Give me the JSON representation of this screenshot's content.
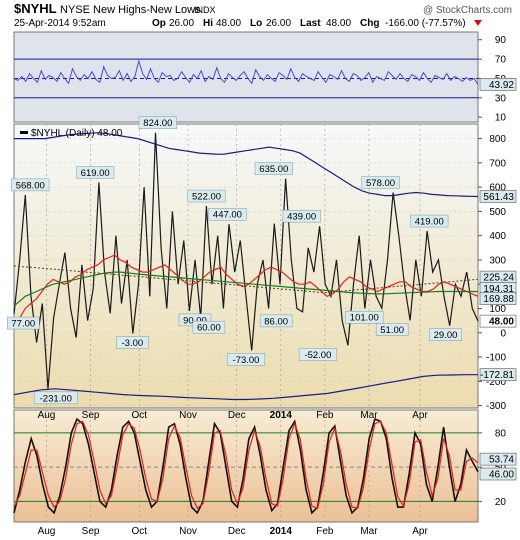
{
  "header": {
    "symbol": "$NYHL",
    "name": "NYSE New Highs-New Lows",
    "exchange": "INDX",
    "watermark": "@ StockCharts.com",
    "date": "25-Apr-2014 9:52am",
    "op_label": "Op",
    "op": "26.00",
    "hi_label": "Hi",
    "hi": "48.00",
    "lo_label": "Lo",
    "lo": "26.00",
    "last_label": "Last",
    "last": "48.00",
    "chg_label": "Chg",
    "chg": "-166.00 (-77.57%)"
  },
  "colors": {
    "upper_bg": "#dfe4ec",
    "main_bg_top": "#f6f9fb",
    "main_bg_bottom": "#ecdcae",
    "lower_bg_top": "#f7ecd4",
    "lower_bg_bottom": "#ecc096",
    "band": "#1a1a8a",
    "price": "#1a1a1a",
    "ma_red": "#e0231b",
    "ma_green": "#1f7a1f",
    "ma_dotted": "#5a3a20",
    "rsi_line": "#4a4ad8",
    "label_bg": "#d9ebef"
  },
  "chart_data": [
    {
      "type": "line",
      "panel": "upper",
      "y_ticks": [
        "90",
        "70",
        "50",
        "30",
        "10"
      ],
      "ylim": [
        5,
        98
      ],
      "hlines": [
        70,
        50,
        30
      ],
      "last_value_label": "43.92",
      "series": [
        {
          "values": [
            50,
            48,
            52,
            47,
            55,
            50,
            46,
            58,
            49,
            53,
            51,
            47,
            56,
            50,
            45,
            60,
            52,
            48,
            54,
            50,
            57,
            49,
            46,
            62,
            53,
            50,
            51,
            58,
            48,
            55,
            47,
            52,
            68,
            55,
            49,
            60,
            50,
            46,
            56,
            52,
            53,
            48,
            50,
            57,
            51,
            46,
            54,
            50,
            58,
            47,
            52,
            49,
            61,
            50,
            46,
            55,
            51,
            48,
            53,
            57,
            50,
            45,
            59,
            52,
            48,
            54,
            50,
            47,
            56,
            53,
            49,
            60,
            51,
            47,
            55,
            52,
            50,
            48,
            57,
            51,
            46,
            54,
            52,
            49,
            58,
            50,
            47,
            55,
            53,
            48,
            51,
            56,
            46,
            52,
            50,
            48,
            57,
            53,
            49,
            55,
            50,
            47,
            54,
            52,
            48,
            56,
            50,
            46,
            53,
            51,
            49,
            55,
            48,
            52,
            50,
            47,
            51,
            48,
            50,
            44
          ]
        }
      ]
    },
    {
      "type": "line",
      "panel": "main",
      "legend": "$NYHL (Daily) 48.00",
      "y_ticks": [
        "800",
        "700",
        "600",
        "500",
        "400",
        "300",
        "200",
        "100",
        "0",
        "-100",
        "-200",
        "-300"
      ],
      "ylim": [
        -310,
        860
      ],
      "x_ticks": [
        "Aug",
        "Sep",
        "Oct",
        "Nov",
        "Dec",
        "2014",
        "Feb",
        "Mar",
        "Apr"
      ],
      "x_tick_pos": [
        0.07,
        0.165,
        0.27,
        0.375,
        0.48,
        0.575,
        0.67,
        0.765,
        0.875
      ],
      "annotations": [
        {
          "text": "568.00",
          "x": 0.035,
          "y": 568
        },
        {
          "text": "619.00",
          "x": 0.175,
          "y": 619
        },
        {
          "text": "824.00",
          "x": 0.31,
          "y": 824
        },
        {
          "text": "522.00",
          "x": 0.415,
          "y": 522
        },
        {
          "text": "447.00",
          "x": 0.46,
          "y": 447
        },
        {
          "text": "635.00",
          "x": 0.56,
          "y": 635
        },
        {
          "text": "439.00",
          "x": 0.62,
          "y": 439
        },
        {
          "text": "578.00",
          "x": 0.79,
          "y": 578
        },
        {
          "text": "419.00",
          "x": 0.895,
          "y": 419
        },
        {
          "text": "77.00",
          "x": 0.02,
          "y": 77
        },
        {
          "text": "-231.00",
          "x": 0.09,
          "y": -231
        },
        {
          "text": "-3.00",
          "x": 0.255,
          "y": -3
        },
        {
          "text": "90.00",
          "x": 0.39,
          "y": 90
        },
        {
          "text": "60.00",
          "x": 0.42,
          "y": 60
        },
        {
          "text": "-73.00",
          "x": 0.5,
          "y": -73
        },
        {
          "text": "86.00",
          "x": 0.565,
          "y": 86
        },
        {
          "text": "-52.00",
          "x": 0.655,
          "y": -52
        },
        {
          "text": "101.00",
          "x": 0.755,
          "y": 101
        },
        {
          "text": "51.00",
          "x": 0.815,
          "y": 51
        },
        {
          "text": "29.00",
          "x": 0.93,
          "y": 29
        }
      ],
      "right_labels": [
        "561.43",
        "225.24",
        "194.31",
        "169.88",
        "48.00",
        "-172.81"
      ],
      "series": [
        {
          "values": [
            77,
            300,
            568,
            150,
            -40,
            120,
            -231,
            60,
            200,
            330,
            100,
            -20,
            280,
            50,
            180,
            619,
            250,
            80,
            400,
            120,
            300,
            -3,
            200,
            600,
            150,
            824,
            350,
            100,
            500,
            200,
            380,
            90,
            300,
            60,
            522,
            200,
            400,
            100,
            447,
            250,
            380,
            150,
            -73,
            200,
            300,
            100,
            450,
            200,
            635,
            300,
            100,
            86,
            350,
            250,
            439,
            200,
            150,
            300,
            50,
            -52,
            200,
            400,
            100,
            300,
            150,
            101,
            300,
            578,
            400,
            200,
            51,
            300,
            150,
            419,
            250,
            300,
            150,
            29,
            200,
            150,
            250,
            100,
            48
          ]
        },
        {
          "values": [
            20,
            60,
            100,
            120,
            140,
            170,
            200,
            220,
            210,
            200,
            210,
            230,
            240,
            260,
            270,
            280,
            300,
            310,
            320,
            300,
            290,
            270,
            260,
            250,
            250,
            260,
            270,
            280,
            260,
            240,
            220,
            200,
            200,
            210,
            230,
            250,
            260,
            270,
            240,
            220,
            200,
            190,
            200,
            220,
            240,
            260,
            270,
            260,
            250,
            230,
            210,
            200,
            200,
            210,
            190,
            170,
            150,
            160,
            180,
            210,
            230,
            220,
            210,
            190,
            180,
            170,
            180,
            190,
            200,
            210,
            210,
            190,
            180,
            170,
            170,
            180,
            200,
            210,
            200,
            190,
            180,
            170,
            160,
            150
          ]
        },
        {
          "values": [
            110,
            130,
            150,
            160,
            170,
            180,
            190,
            200,
            205,
            210,
            215,
            220,
            225,
            230,
            235,
            240,
            245,
            248,
            250,
            250,
            248,
            245,
            242,
            240,
            238,
            236,
            234,
            232,
            230,
            228,
            226,
            224,
            222,
            220,
            218,
            216,
            214,
            212,
            210,
            208,
            206,
            204,
            202,
            200,
            198,
            196,
            194,
            192,
            190,
            188,
            186,
            184,
            182,
            180,
            178,
            176,
            174,
            172,
            170,
            168,
            166,
            164,
            163,
            162,
            161,
            160,
            160,
            161,
            162,
            163,
            164,
            165,
            166,
            167,
            168,
            169,
            170,
            170,
            170,
            170,
            170,
            170,
            170,
            170
          ]
        },
        {
          "values": [
            275,
            273,
            271,
            270,
            268,
            266,
            264,
            262,
            260,
            258,
            256,
            254,
            252,
            250,
            248,
            246,
            244,
            242,
            240,
            238,
            236,
            234,
            232,
            230,
            228,
            226,
            224,
            222,
            220,
            218,
            216,
            214,
            212,
            210,
            208,
            206,
            204,
            202,
            200,
            198,
            196,
            194,
            192,
            190,
            188,
            186,
            184,
            182,
            180,
            178,
            176,
            174,
            172,
            170,
            168,
            166,
            166,
            168,
            170,
            172,
            174,
            176,
            178,
            180,
            182,
            184,
            186,
            188,
            190,
            192,
            194,
            196,
            198,
            200,
            202,
            204,
            206,
            208,
            210,
            212,
            214,
            216,
            218,
            220
          ]
        },
        {
          "values": [
            800,
            800,
            800,
            800,
            800,
            805,
            810,
            815,
            818,
            820,
            822,
            824,
            820,
            815,
            810,
            805,
            800,
            790,
            780,
            770,
            760,
            755,
            750,
            745,
            740,
            738,
            736,
            735,
            740,
            745,
            750,
            755,
            760,
            765,
            760,
            755,
            750,
            740,
            720,
            700,
            680,
            660,
            640,
            620,
            600,
            585,
            575,
            570,
            565,
            565,
            570,
            575,
            578,
            575,
            570,
            568,
            565,
            564,
            563,
            562,
            561.43
          ]
        },
        {
          "values": [
            -255,
            -245,
            -235,
            -231,
            -235,
            -240,
            -245,
            -250,
            -255,
            -258,
            -260,
            -262,
            -265,
            -268,
            -270,
            -272,
            -275,
            -275,
            -273,
            -270,
            -265,
            -260,
            -255,
            -250,
            -240,
            -230,
            -220,
            -210,
            -200,
            -190,
            -180,
            -175,
            -174,
            -173,
            -172.81
          ]
        }
      ]
    },
    {
      "type": "line",
      "panel": "lower",
      "y_ticks": [
        "80",
        "50",
        "20"
      ],
      "ylim": [
        2,
        100
      ],
      "hlines": [
        80,
        50,
        20
      ],
      "right_labels": [
        "53.74",
        "46.00"
      ],
      "x_ticks": [
        "Aug",
        "Sep",
        "Oct",
        "Nov",
        "Dec",
        "2014",
        "Feb",
        "Mar",
        "Apr"
      ],
      "series": [
        {
          "values": [
            10,
            30,
            55,
            75,
            60,
            35,
            15,
            10,
            25,
            50,
            80,
            92,
            88,
            70,
            45,
            20,
            15,
            30,
            60,
            85,
            90,
            80,
            55,
            30,
            15,
            20,
            50,
            85,
            88,
            70,
            40,
            15,
            10,
            20,
            55,
            88,
            80,
            50,
            20,
            15,
            40,
            75,
            85,
            60,
            30,
            12,
            18,
            50,
            82,
            90,
            65,
            30,
            10,
            15,
            45,
            80,
            86,
            55,
            25,
            10,
            15,
            40,
            75,
            92,
            90,
            75,
            40,
            15,
            15,
            45,
            80,
            70,
            35,
            20,
            50,
            85,
            50,
            20,
            35,
            65,
            55,
            46
          ]
        },
        {
          "values": [
            15,
            25,
            45,
            65,
            65,
            45,
            25,
            15,
            20,
            40,
            70,
            88,
            90,
            78,
            55,
            30,
            18,
            25,
            50,
            78,
            88,
            84,
            65,
            40,
            22,
            20,
            40,
            75,
            86,
            76,
            50,
            25,
            14,
            18,
            45,
            80,
            82,
            60,
            30,
            18,
            32,
            65,
            82,
            68,
            40,
            18,
            16,
            40,
            75,
            88,
            74,
            40,
            16,
            14,
            35,
            72,
            84,
            64,
            35,
            15,
            14,
            32,
            65,
            88,
            90,
            80,
            52,
            24,
            16,
            36,
            72,
            74,
            46,
            25,
            40,
            75,
            60,
            30,
            30,
            55,
            58,
            53.74
          ]
        }
      ]
    }
  ]
}
